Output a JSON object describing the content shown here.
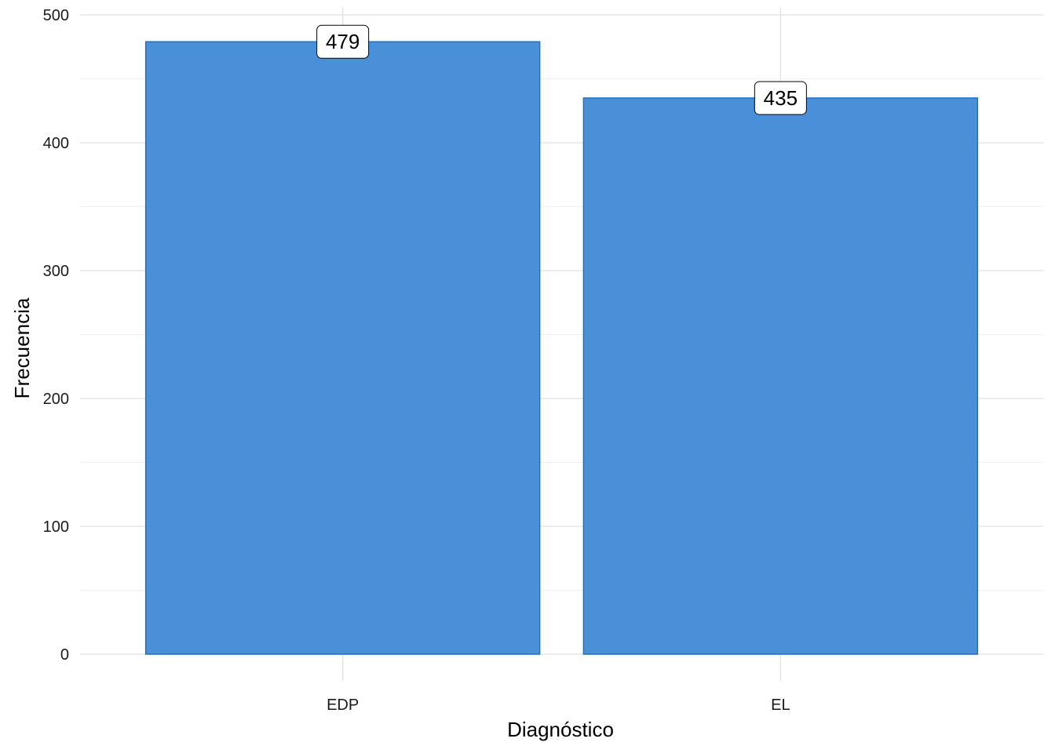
{
  "chart_data": {
    "type": "bar",
    "categories": [
      "EDP",
      "EL"
    ],
    "values": [
      479,
      435
    ],
    "xlabel": "Diagnóstico",
    "ylabel": "Frecuencia",
    "ylim": [
      0,
      500
    ],
    "yticks": [
      0,
      100,
      200,
      300,
      400,
      500
    ],
    "data_labels": [
      "479",
      "435"
    ],
    "grid": true,
    "legend": "none",
    "colors": {
      "bar_fill": "#4a90d9",
      "bar_stroke": "#1f6fc5"
    }
  }
}
